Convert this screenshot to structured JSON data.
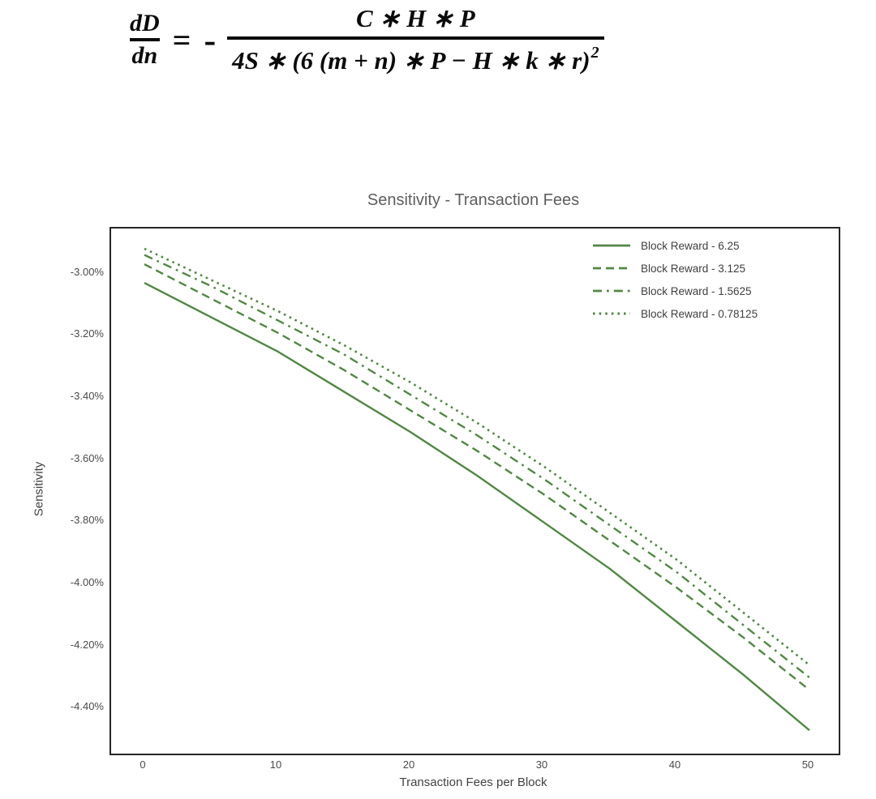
{
  "formula": {
    "lhs_numerator": "dD",
    "lhs_denominator": "dn",
    "equals_sign": "=",
    "minus_sign": "-",
    "numerator": "C ∗ H ∗ P",
    "denominator": "4S ∗ (6 (m + n) ∗ P − H ∗ k ∗ r)",
    "denominator_exponent": "2"
  },
  "colors": {
    "line_green": "#538646",
    "title_gray": "#5e5e5e",
    "tick_gray": "#4a4a4a",
    "spine_dark": "#262626"
  },
  "chart_data": {
    "type": "line",
    "title": "Sensitivity - Transaction Fees",
    "xlabel": "Transaction Fees per Block",
    "ylabel": "Sensitivity",
    "grid": false,
    "legend_position": "upper right",
    "line_color": "#538646",
    "xlim": [
      -2.5,
      52.2
    ],
    "ylim": [
      -4.545,
      -2.855
    ],
    "x_ticks": [
      0,
      10,
      20,
      30,
      40,
      50
    ],
    "y_tick_values": [
      -3.0,
      -3.2,
      -3.4,
      -3.6,
      -3.8,
      -4.0,
      -4.2,
      -4.4
    ],
    "y_tick_labels": [
      "-3.00%",
      "-3.20%",
      "-3.40%",
      "-3.60%",
      "-3.80%",
      "-4.00%",
      "-4.20%",
      "-4.40%"
    ],
    "y_unit": "percent",
    "x": [
      0,
      5,
      10,
      15,
      20,
      25,
      30,
      35,
      40,
      45,
      50
    ],
    "series": [
      {
        "name": "Block Reward - 6.25",
        "dash": "solid",
        "values": [
          -3.03,
          -3.14,
          -3.25,
          -3.38,
          -3.51,
          -3.65,
          -3.8,
          -3.95,
          -4.12,
          -4.29,
          -4.47
        ]
      },
      {
        "name": "Block Reward - 3.125",
        "dash": "dashed",
        "values": [
          -2.97,
          -3.08,
          -3.19,
          -3.31,
          -3.44,
          -3.57,
          -3.71,
          -3.86,
          -4.01,
          -4.17,
          -4.34
        ]
      },
      {
        "name": "Block Reward - 1.5625",
        "dash": "dashdot",
        "values": [
          -2.94,
          -3.04,
          -3.15,
          -3.26,
          -3.39,
          -3.52,
          -3.66,
          -3.81,
          -3.96,
          -4.13,
          -4.3
        ]
      },
      {
        "name": "Block Reward - 0.78125",
        "dash": "dotted",
        "values": [
          -2.92,
          -3.02,
          -3.12,
          -3.23,
          -3.35,
          -3.48,
          -3.62,
          -3.77,
          -3.92,
          -4.09,
          -4.26
        ]
      }
    ]
  }
}
